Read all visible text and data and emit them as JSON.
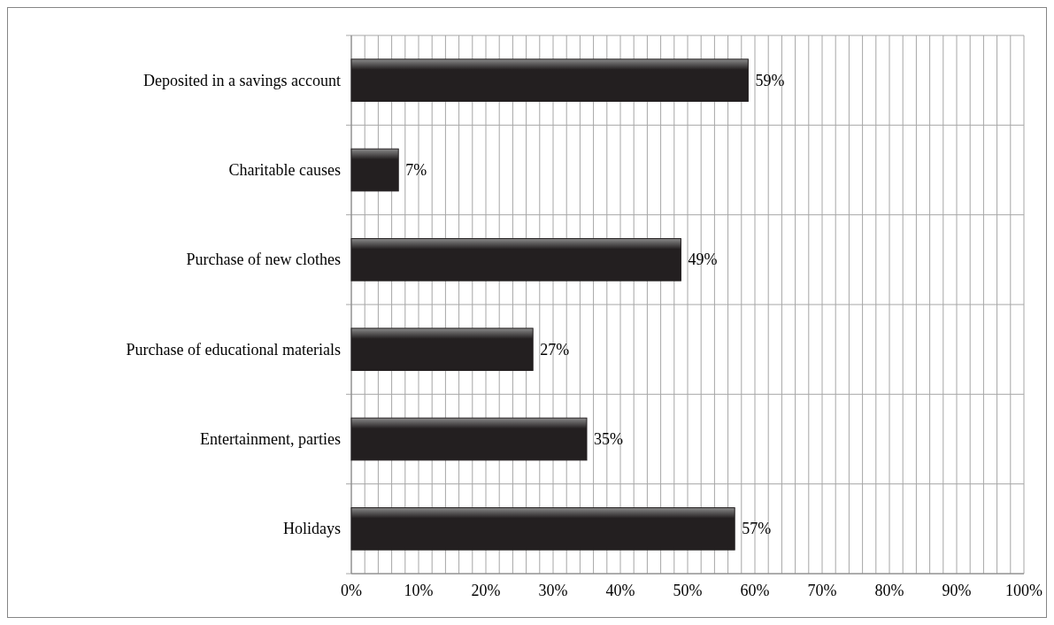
{
  "chart_data": {
    "type": "bar",
    "orientation": "horizontal",
    "categories": [
      "Deposited in a savings account",
      "Charitable causes",
      "Purchase of new clothes",
      "Purchase of educational materials",
      "Entertainment, parties",
      "Holidays"
    ],
    "values": [
      59,
      7,
      49,
      27,
      35,
      57
    ],
    "value_labels": [
      "59%",
      "7%",
      "49%",
      "27%",
      "35%",
      "57%"
    ],
    "color": "#231f20",
    "grid": true,
    "xlim": [
      0,
      100
    ],
    "xticks": [
      {
        "value": 0,
        "label": "0%"
      },
      {
        "value": 2,
        "label": null
      },
      {
        "value": 4,
        "label": null
      },
      {
        "value": 6,
        "label": null
      },
      {
        "value": 8,
        "label": null
      },
      {
        "value": 10,
        "label": "10%"
      },
      {
        "value": 12,
        "label": null
      },
      {
        "value": 14,
        "label": null
      },
      {
        "value": 16,
        "label": null
      },
      {
        "value": 18,
        "label": null
      },
      {
        "value": 20,
        "label": "20%"
      },
      {
        "value": 22,
        "label": null
      },
      {
        "value": 24,
        "label": null
      },
      {
        "value": 26,
        "label": null
      },
      {
        "value": 28,
        "label": null
      },
      {
        "value": 30,
        "label": "30%"
      },
      {
        "value": 32,
        "label": null
      },
      {
        "value": 34,
        "label": null
      },
      {
        "value": 36,
        "label": null
      },
      {
        "value": 38,
        "label": null
      },
      {
        "value": 40,
        "label": "40%"
      },
      {
        "value": 42,
        "label": null
      },
      {
        "value": 44,
        "label": null
      },
      {
        "value": 46,
        "label": null
      },
      {
        "value": 48,
        "label": null
      },
      {
        "value": 50,
        "label": "50%"
      },
      {
        "value": 52,
        "label": null
      },
      {
        "value": 54,
        "label": null
      },
      {
        "value": 56,
        "label": null
      },
      {
        "value": 58,
        "label": null
      },
      {
        "value": 60,
        "label": "60%"
      },
      {
        "value": 62,
        "label": null
      },
      {
        "value": 64,
        "label": null
      },
      {
        "value": 66,
        "label": null
      },
      {
        "value": 68,
        "label": null
      },
      {
        "value": 70,
        "label": "70%"
      },
      {
        "value": 72,
        "label": null
      },
      {
        "value": 74,
        "label": null
      },
      {
        "value": 76,
        "label": null
      },
      {
        "value": 78,
        "label": null
      },
      {
        "value": 80,
        "label": "80%"
      },
      {
        "value": 82,
        "label": null
      },
      {
        "value": 84,
        "label": null
      },
      {
        "value": 86,
        "label": null
      },
      {
        "value": 88,
        "label": null
      },
      {
        "value": 90,
        "label": "90%"
      },
      {
        "value": 92,
        "label": null
      },
      {
        "value": 94,
        "label": null
      },
      {
        "value": 96,
        "label": null
      },
      {
        "value": 98,
        "label": null
      },
      {
        "value": 100,
        "label": "100%"
      }
    ]
  }
}
